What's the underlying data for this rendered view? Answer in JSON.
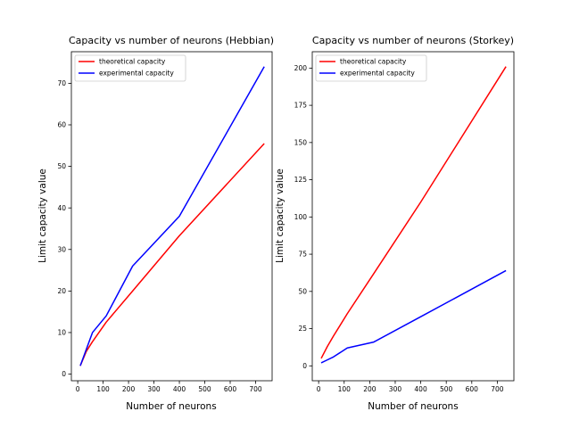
{
  "chart_data": [
    {
      "type": "line",
      "title": "Capacity vs number of neurons (Hebbian)",
      "xlabel": "Number of neurons",
      "ylabel": "Limit capacity value",
      "xlim": [
        -25,
        765
      ],
      "ylim": [
        -1.6,
        77.6
      ],
      "xticks": [
        0,
        100,
        200,
        300,
        400,
        500,
        600,
        700
      ],
      "yticks": [
        0,
        10,
        20,
        30,
        40,
        50,
        60,
        70
      ],
      "legend": "upper-left",
      "series": [
        {
          "name": "theoretical capacity",
          "color": "#ff0000",
          "x": [
            10,
            34,
            58,
            112,
            216,
            400,
            734
          ],
          "y": [
            2,
            5.5,
            7.8,
            12.5,
            20,
            33.3,
            55.5
          ]
        },
        {
          "name": "experimental capacity",
          "color": "#0000ff",
          "x": [
            10,
            34,
            58,
            112,
            216,
            400,
            734
          ],
          "y": [
            2,
            6,
            10,
            14,
            26,
            38,
            74
          ]
        }
      ]
    },
    {
      "type": "line",
      "title": "Capacity vs number of neurons (Storkey)",
      "xlabel": "Number of neurons",
      "ylabel": "Limit capacity value",
      "xlim": [
        -25,
        765
      ],
      "ylim": [
        -10,
        211
      ],
      "xticks": [
        0,
        100,
        200,
        300,
        400,
        500,
        600,
        700
      ],
      "yticks": [
        0,
        25,
        50,
        75,
        100,
        125,
        150,
        175,
        200
      ],
      "legend": "upper-left",
      "series": [
        {
          "name": "theoretical capacity",
          "color": "#ff0000",
          "x": [
            10,
            34,
            58,
            112,
            216,
            400,
            734
          ],
          "y": [
            5,
            13,
            20,
            35,
            62,
            110,
            201
          ]
        },
        {
          "name": "experimental capacity",
          "color": "#0000ff",
          "x": [
            10,
            34,
            58,
            112,
            216,
            400,
            734
          ],
          "y": [
            2,
            4,
            6,
            12,
            16,
            33,
            64
          ]
        }
      ]
    }
  ]
}
